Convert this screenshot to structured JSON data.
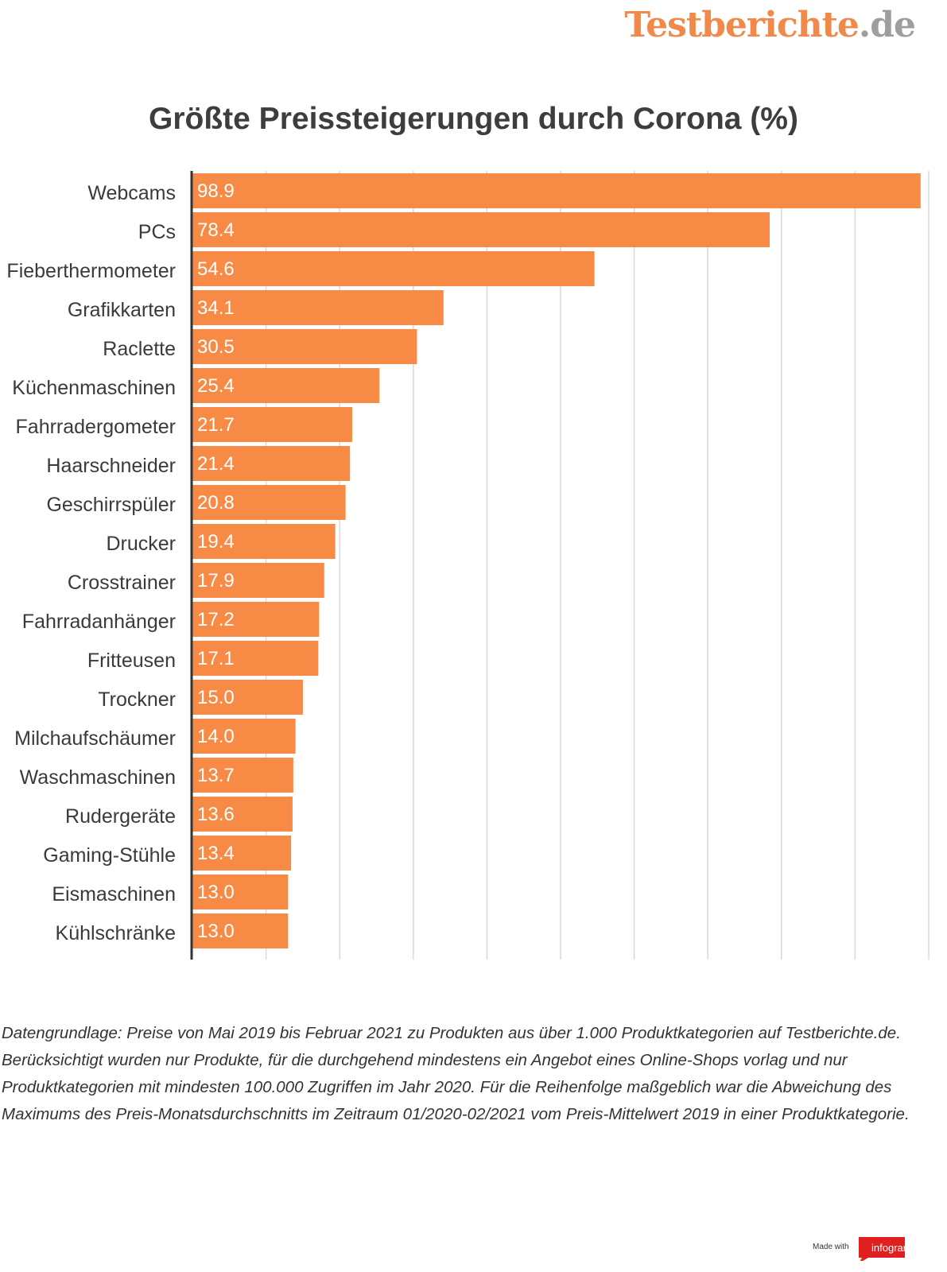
{
  "logo": {
    "brand": "Testberichte",
    "tld": ".de"
  },
  "footnote": "Datengrundlage: Preise von Mai 2019 bis Februar 2021 zu Produkten aus über 1.000 Produktkategorien auf Testberichte.de. Berücksichtigt wurden nur Produkte, für die durchgehend mindestens ein Angebot eines Online-Shops vorlag und nur Produktkategorien mit mindesten 100.000 Zugriffen im Jahr 2020. Für die Reihenfolge maßgeblich war die Abweichung des Maximums des Preis-Monatsdurchschnitts im Zeitraum 01/2020-02/2021 vom Preis-Mittelwert 2019 in einer Produktkategorie.",
  "footer": {
    "made_with": "Made with",
    "infogram": "infogram"
  },
  "colors": {
    "bar": "#f78a45",
    "brand": "#f0894a",
    "infogram": "#e0201f"
  },
  "chart_data": {
    "type": "bar",
    "orientation": "horizontal",
    "title": "Größte Preissteigerungen durch Corona (%)",
    "xlabel": "",
    "ylabel": "",
    "xlim": [
      0,
      100
    ],
    "grid": true,
    "categories": [
      "Webcams",
      "PCs",
      "Fieberthermometer",
      "Grafikkarten",
      "Raclette",
      "Küchenmaschinen",
      "Fahrradergometer",
      "Haarschneider",
      "Geschirrspüler",
      "Drucker",
      "Crosstrainer",
      "Fahrradanhänger",
      "Fritteusen",
      "Trockner",
      "Milchaufschäumer",
      "Waschmaschinen",
      "Rudergeräte",
      "Gaming-Stühle",
      "Eismaschinen",
      "Kühlschränke"
    ],
    "values": [
      98.9,
      78.4,
      54.6,
      34.1,
      30.5,
      25.4,
      21.7,
      21.4,
      20.8,
      19.4,
      17.9,
      17.2,
      17.1,
      15.0,
      14.0,
      13.7,
      13.6,
      13.4,
      13.0,
      13.0
    ],
    "value_labels": [
      "98.9",
      "78.4",
      "54.6",
      "34.1",
      "30.5",
      "25.4",
      "21.7",
      "21.4",
      "20.8",
      "19.4",
      "17.9",
      "17.2",
      "17.1",
      "15.0",
      "14.0",
      "13.7",
      "13.6",
      "13.4",
      "13.0",
      "13.0"
    ]
  }
}
